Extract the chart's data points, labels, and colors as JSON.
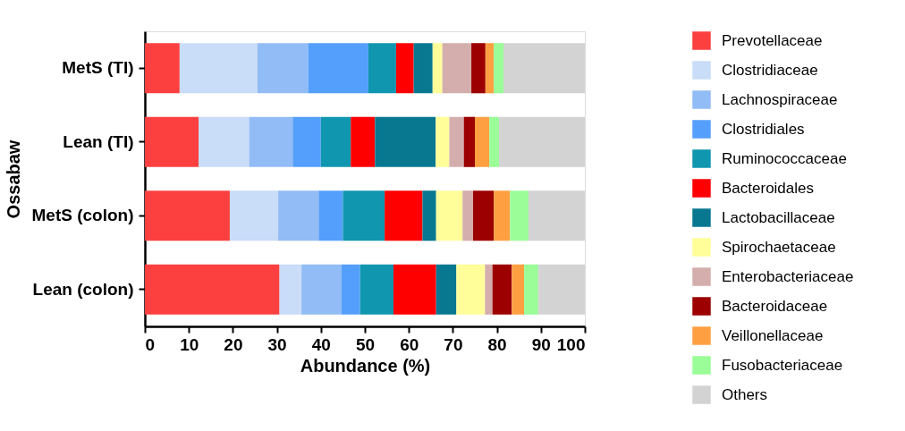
{
  "chart_data": {
    "type": "bar",
    "orientation": "horizontal",
    "stacked": true,
    "xlabel": "Abundance (%)",
    "ylabel": "Ossabaw",
    "categories": [
      "MetS (TI)",
      "Lean (TI)",
      "MetS (colon)",
      "Lean (colon)"
    ],
    "xlim": [
      0,
      100
    ],
    "xticks": [
      0,
      10,
      20,
      30,
      40,
      50,
      60,
      70,
      80,
      90,
      100
    ],
    "grid": false,
    "legend": "right",
    "series": [
      {
        "name": "Prevotellaceae",
        "color": "#fc4040",
        "values": [
          7.9,
          12.2,
          19.3,
          30.6
        ]
      },
      {
        "name": "Clostridiaceae",
        "color": "#c9dcf8",
        "values": [
          17.7,
          11.5,
          11.0,
          5.0
        ]
      },
      {
        "name": "Lachnospiraceae",
        "color": "#92bcf5",
        "values": [
          11.5,
          9.9,
          9.2,
          9.1
        ]
      },
      {
        "name": "Clostridiales",
        "color": "#559ffc",
        "values": [
          13.7,
          6.4,
          5.5,
          4.2
        ]
      },
      {
        "name": "Ruminococcaceae",
        "color": "#1196b0",
        "values": [
          6.3,
          6.8,
          9.5,
          7.6
        ]
      },
      {
        "name": "Bacteroidales",
        "color": "#ff0000",
        "values": [
          4.0,
          5.5,
          8.6,
          9.7
        ]
      },
      {
        "name": "Lactobacillaceae",
        "color": "#087891",
        "values": [
          4.3,
          13.8,
          3.1,
          4.6
        ]
      },
      {
        "name": "Spirochaetaceae",
        "color": "#fffe99",
        "values": [
          2.2,
          3.1,
          6.0,
          6.5
        ]
      },
      {
        "name": "Enterobacteriaceae",
        "color": "#d4aeac",
        "values": [
          6.6,
          3.3,
          2.4,
          1.7
        ]
      },
      {
        "name": "Bacteroidaceae",
        "color": "#9c0000",
        "values": [
          3.2,
          2.5,
          4.7,
          4.4
        ]
      },
      {
        "name": "Veillonellaceae",
        "color": "#fea042",
        "values": [
          1.9,
          3.3,
          3.7,
          2.8
        ]
      },
      {
        "name": "Fusobacteriaceae",
        "color": "#9afd98",
        "values": [
          2.2,
          2.2,
          4.2,
          3.2
        ]
      },
      {
        "name": "Others",
        "color": "#d3d3d3",
        "values": [
          18.5,
          19.5,
          12.8,
          10.6
        ]
      }
    ]
  }
}
